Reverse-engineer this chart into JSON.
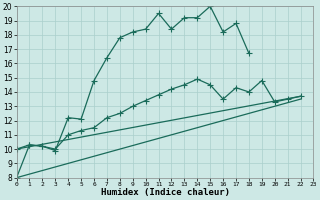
{
  "xlabel": "Humidex (Indice chaleur)",
  "background_color": "#cde8e5",
  "grid_color": "#aacfcc",
  "line_color": "#1a6b5a",
  "xlim": [
    0,
    23
  ],
  "ylim": [
    8,
    20
  ],
  "xticks": [
    0,
    1,
    2,
    3,
    4,
    5,
    6,
    7,
    8,
    9,
    10,
    11,
    12,
    13,
    14,
    15,
    16,
    17,
    18,
    19,
    20,
    21,
    22,
    23
  ],
  "yticks": [
    8,
    9,
    10,
    11,
    12,
    13,
    14,
    15,
    16,
    17,
    18,
    19,
    20
  ],
  "line1_x": [
    0,
    1,
    2,
    3,
    4,
    5,
    6,
    7,
    8,
    9,
    10,
    11,
    12,
    13,
    14,
    15,
    16,
    17,
    18
  ],
  "line1_y": [
    8,
    10.3,
    10.2,
    9.9,
    12.2,
    12.1,
    14.8,
    16.4,
    17.8,
    18.2,
    18.4,
    19.5,
    18.4,
    19.2,
    19.2,
    20.0,
    18.2,
    18.8,
    16.7
  ],
  "line2_x": [
    0,
    1,
    2,
    3,
    4,
    5,
    6,
    7,
    8,
    9,
    10,
    11,
    12,
    13,
    14,
    15,
    16,
    17,
    18,
    19,
    20,
    21,
    22
  ],
  "line2_y": [
    10,
    10.3,
    10.2,
    10.0,
    11.0,
    11.3,
    11.5,
    12.2,
    12.5,
    13.0,
    13.4,
    13.8,
    14.2,
    14.5,
    14.9,
    14.5,
    13.5,
    14.3,
    14.0,
    14.8,
    13.3,
    13.5,
    13.7
  ],
  "line3_x": [
    0,
    22
  ],
  "line3_y": [
    8,
    13.5
  ],
  "line4_x": [
    0,
    22
  ],
  "line4_y": [
    10,
    13.7
  ],
  "marker_size": 2.5,
  "line_width": 0.9
}
